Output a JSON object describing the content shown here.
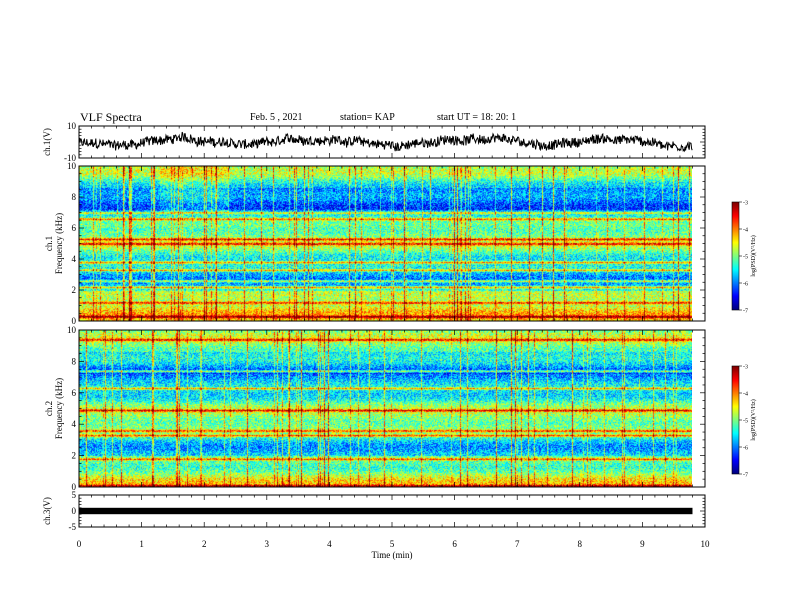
{
  "header": {
    "title": "VLF Spectra",
    "date": "Feb. 5 , 2021",
    "station": "station= KAP",
    "start": "start  UT =   18: 20: 1"
  },
  "chart_data": [
    {
      "type": "line",
      "ylabel": "ch.1(V)",
      "ylim": [
        -10,
        10
      ],
      "yticks": [
        "10",
        "-10"
      ],
      "xlim": [
        0,
        10
      ],
      "series_color": "#000000"
    },
    {
      "type": "heatmap",
      "ylabel_line1": "ch.1",
      "ylabel_line2": "Frequency (kHz)",
      "ylim": [
        0,
        10
      ],
      "yticks": [
        "0",
        "2",
        "4",
        "6",
        "8",
        "10"
      ],
      "xlim": [
        0,
        9.8
      ],
      "colorbar": {
        "label": "log(PSD)(V²/Hz)",
        "ticks": [
          "-3",
          "-4",
          "-5",
          "-6",
          "-7"
        ],
        "range": [
          -7,
          -3
        ]
      },
      "bands_khz": [
        0.3,
        1.2,
        2.2,
        2.6,
        3.3,
        3.8,
        5.0,
        5.3,
        6.6,
        7.0
      ]
    },
    {
      "type": "heatmap",
      "ylabel_line1": "ch.2",
      "ylabel_line2": "Frequency (kHz)",
      "ylim": [
        0,
        10
      ],
      "yticks": [
        "0",
        "2",
        "4",
        "6",
        "8",
        "10"
      ],
      "xlim": [
        0,
        9.8
      ],
      "colorbar": {
        "label": "log(PSD)(V²/Hz)",
        "ticks": [
          "-3",
          "-4",
          "-5",
          "-6",
          "-7"
        ],
        "range": [
          -7,
          -3
        ]
      },
      "bands_khz": [
        0.1,
        1.8,
        3.3,
        3.6,
        4.9,
        6.3,
        7.4,
        9.4
      ]
    },
    {
      "type": "line",
      "ylabel": "ch.3(V)",
      "ylim": [
        -5,
        5
      ],
      "yticks": [
        "5",
        "0",
        "-5"
      ],
      "xlim": [
        0,
        10
      ],
      "series_color": "#000000"
    }
  ],
  "xaxis": {
    "label": "Time  (min)",
    "ticks": [
      "0",
      "1",
      "2",
      "3",
      "4",
      "5",
      "6",
      "7",
      "8",
      "9",
      "10"
    ],
    "range": [
      0,
      10
    ]
  }
}
